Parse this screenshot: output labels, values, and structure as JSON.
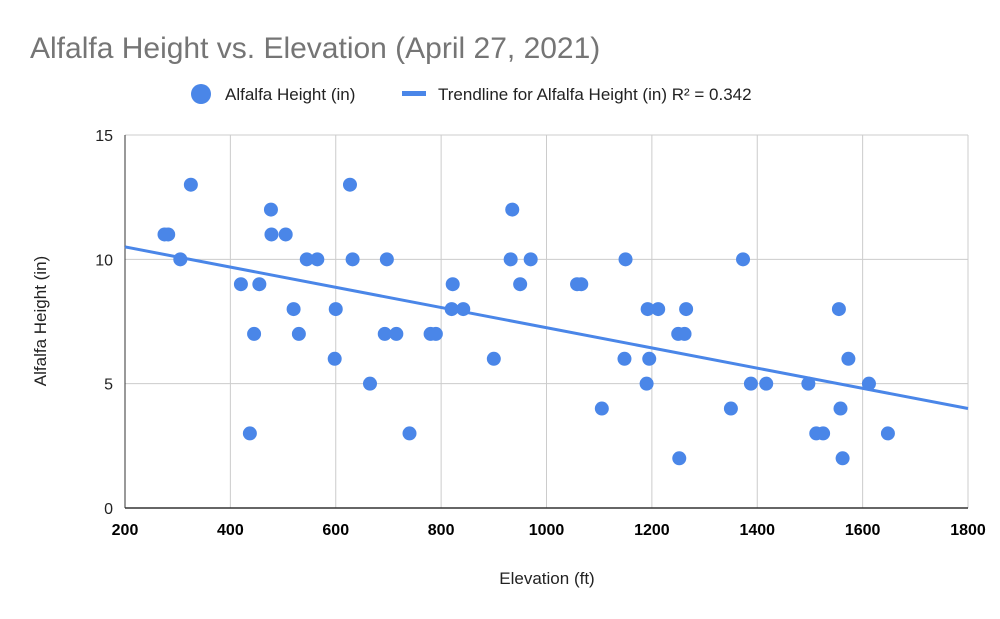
{
  "chart_data": {
    "type": "scatter",
    "title": "Alfalfa Height vs. Elevation (April 27, 2021)",
    "xlabel": "Elevation (ft)",
    "ylabel": "Alfalfa Height (in)",
    "xlim": [
      200,
      1800
    ],
    "ylim": [
      0,
      15
    ],
    "x_ticks": [
      "200",
      "400",
      "600",
      "800",
      "1000",
      "1200",
      "1400",
      "1600",
      "1800"
    ],
    "y_ticks": [
      "0",
      "5",
      "10",
      "15"
    ],
    "grid": true,
    "legend_position": "top",
    "series": [
      {
        "name": "Alfalfa Height (in)",
        "color": "#4a86e8",
        "points": [
          [
            275,
            11
          ],
          [
            282,
            11
          ],
          [
            305,
            10
          ],
          [
            325,
            13
          ],
          [
            420,
            9
          ],
          [
            437,
            3
          ],
          [
            445,
            7
          ],
          [
            455,
            9
          ],
          [
            477,
            12
          ],
          [
            478,
            11
          ],
          [
            505,
            11
          ],
          [
            520,
            8
          ],
          [
            530,
            7
          ],
          [
            545,
            10
          ],
          [
            565,
            10
          ],
          [
            598,
            6
          ],
          [
            600,
            8
          ],
          [
            627,
            13
          ],
          [
            632,
            10
          ],
          [
            665,
            5
          ],
          [
            693,
            7
          ],
          [
            697,
            10
          ],
          [
            715,
            7
          ],
          [
            740,
            3
          ],
          [
            780,
            7
          ],
          [
            790,
            7
          ],
          [
            820,
            8
          ],
          [
            822,
            9
          ],
          [
            842,
            8
          ],
          [
            900,
            6
          ],
          [
            932,
            10
          ],
          [
            935,
            12
          ],
          [
            950,
            9
          ],
          [
            970,
            10
          ],
          [
            1058,
            9
          ],
          [
            1066,
            9
          ],
          [
            1105,
            4
          ],
          [
            1148,
            6
          ],
          [
            1150,
            10
          ],
          [
            1190,
            5
          ],
          [
            1192,
            8
          ],
          [
            1195,
            6
          ],
          [
            1212,
            8
          ],
          [
            1250,
            7
          ],
          [
            1252,
            2
          ],
          [
            1262,
            7
          ],
          [
            1265,
            8
          ],
          [
            1350,
            4
          ],
          [
            1373,
            10
          ],
          [
            1388,
            5
          ],
          [
            1417,
            5
          ],
          [
            1497,
            5
          ],
          [
            1512,
            3
          ],
          [
            1525,
            3
          ],
          [
            1555,
            8
          ],
          [
            1558,
            4
          ],
          [
            1562,
            2
          ],
          [
            1573,
            6
          ],
          [
            1612,
            5
          ],
          [
            1648,
            3
          ]
        ]
      },
      {
        "name": "Trendline for Alfalfa Height (in) R² = 0.342",
        "type": "line",
        "color": "#4a86e8",
        "points": [
          [
            200,
            10.5
          ],
          [
            1800,
            4.0
          ]
        ]
      }
    ]
  }
}
